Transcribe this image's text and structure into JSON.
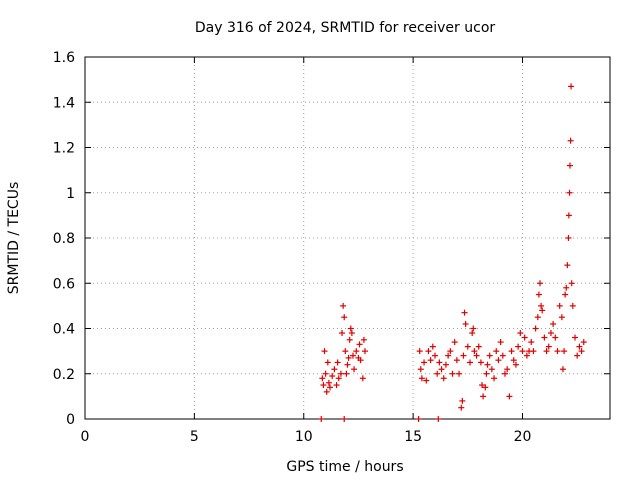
{
  "chart_data": {
    "type": "scatter",
    "title": "Day 316 of 2024, SRMTID for receiver ucor",
    "xlabel": "GPS time / hours",
    "ylabel": "SRMTID / TECUs",
    "xlim": [
      0,
      24
    ],
    "ylim": [
      0,
      1.6
    ],
    "grid": true,
    "marker": "+",
    "color": "#e00000",
    "x_ticks": [
      {
        "value": 0,
        "label": "0"
      },
      {
        "value": 5,
        "label": "5"
      },
      {
        "value": 10,
        "label": "10"
      },
      {
        "value": 15,
        "label": "15"
      },
      {
        "value": 20,
        "label": "20"
      }
    ],
    "y_ticks": [
      {
        "value": 0,
        "label": "0"
      },
      {
        "value": 0.2,
        "label": "0.2"
      },
      {
        "value": 0.4,
        "label": "0.4"
      },
      {
        "value": 0.6,
        "label": "0.6"
      },
      {
        "value": 0.8,
        "label": "0.8"
      },
      {
        "value": 1.0,
        "label": "1"
      },
      {
        "value": 1.2,
        "label": "1.2"
      },
      {
        "value": 1.4,
        "label": "1.4"
      },
      {
        "value": 1.6,
        "label": "1.6"
      }
    ],
    "series": [
      {
        "name": "SRMTID",
        "points": [
          [
            10.8,
            0.0
          ],
          [
            11.85,
            0.0
          ],
          [
            15.25,
            0.0
          ],
          [
            16.15,
            0.0
          ],
          [
            10.85,
            0.18
          ],
          [
            10.9,
            0.15
          ],
          [
            10.95,
            0.3
          ],
          [
            11.0,
            0.2
          ],
          [
            11.05,
            0.12
          ],
          [
            11.1,
            0.25
          ],
          [
            11.15,
            0.16
          ],
          [
            11.2,
            0.14
          ],
          [
            11.3,
            0.19
          ],
          [
            11.4,
            0.22
          ],
          [
            11.5,
            0.15
          ],
          [
            11.55,
            0.25
          ],
          [
            11.6,
            0.18
          ],
          [
            11.7,
            0.2
          ],
          [
            11.75,
            0.38
          ],
          [
            11.8,
            0.5
          ],
          [
            11.85,
            0.45
          ],
          [
            11.9,
            0.3
          ],
          [
            11.95,
            0.2
          ],
          [
            12.0,
            0.24
          ],
          [
            12.05,
            0.27
          ],
          [
            12.1,
            0.35
          ],
          [
            12.15,
            0.4
          ],
          [
            12.2,
            0.38
          ],
          [
            12.25,
            0.28
          ],
          [
            12.3,
            0.22
          ],
          [
            12.4,
            0.3
          ],
          [
            12.5,
            0.27
          ],
          [
            12.55,
            0.33
          ],
          [
            12.6,
            0.26
          ],
          [
            12.7,
            0.18
          ],
          [
            12.75,
            0.35
          ],
          [
            12.8,
            0.3
          ],
          [
            15.3,
            0.3
          ],
          [
            15.35,
            0.22
          ],
          [
            15.4,
            0.18
          ],
          [
            15.5,
            0.25
          ],
          [
            15.6,
            0.17
          ],
          [
            15.7,
            0.3
          ],
          [
            15.8,
            0.26
          ],
          [
            15.9,
            0.32
          ],
          [
            16.0,
            0.28
          ],
          [
            16.1,
            0.2
          ],
          [
            16.2,
            0.25
          ],
          [
            16.3,
            0.22
          ],
          [
            16.4,
            0.18
          ],
          [
            16.5,
            0.24
          ],
          [
            16.6,
            0.28
          ],
          [
            16.7,
            0.3
          ],
          [
            16.8,
            0.2
          ],
          [
            16.9,
            0.34
          ],
          [
            17.0,
            0.26
          ],
          [
            17.1,
            0.2
          ],
          [
            17.2,
            0.05
          ],
          [
            17.25,
            0.08
          ],
          [
            17.3,
            0.28
          ],
          [
            17.35,
            0.47
          ],
          [
            17.4,
            0.42
          ],
          [
            17.5,
            0.32
          ],
          [
            17.6,
            0.25
          ],
          [
            17.7,
            0.38
          ],
          [
            17.75,
            0.4
          ],
          [
            17.8,
            0.3
          ],
          [
            17.9,
            0.28
          ],
          [
            18.0,
            0.32
          ],
          [
            18.1,
            0.25
          ],
          [
            18.15,
            0.15
          ],
          [
            18.2,
            0.1
          ],
          [
            18.3,
            0.14
          ],
          [
            18.35,
            0.2
          ],
          [
            18.4,
            0.24
          ],
          [
            18.5,
            0.28
          ],
          [
            18.6,
            0.22
          ],
          [
            18.7,
            0.18
          ],
          [
            18.8,
            0.3
          ],
          [
            18.9,
            0.26
          ],
          [
            19.0,
            0.34
          ],
          [
            19.1,
            0.28
          ],
          [
            19.2,
            0.2
          ],
          [
            19.3,
            0.22
          ],
          [
            19.4,
            0.1
          ],
          [
            19.5,
            0.3
          ],
          [
            19.6,
            0.26
          ],
          [
            19.7,
            0.24
          ],
          [
            19.8,
            0.32
          ],
          [
            19.9,
            0.38
          ],
          [
            20.0,
            0.3
          ],
          [
            20.1,
            0.36
          ],
          [
            20.2,
            0.28
          ],
          [
            20.3,
            0.3
          ],
          [
            20.4,
            0.34
          ],
          [
            20.5,
            0.3
          ],
          [
            20.6,
            0.4
          ],
          [
            20.7,
            0.45
          ],
          [
            20.75,
            0.55
          ],
          [
            20.8,
            0.6
          ],
          [
            20.85,
            0.5
          ],
          [
            20.9,
            0.48
          ],
          [
            21.0,
            0.36
          ],
          [
            21.1,
            0.3
          ],
          [
            21.2,
            0.32
          ],
          [
            21.3,
            0.38
          ],
          [
            21.4,
            0.42
          ],
          [
            21.5,
            0.36
          ],
          [
            21.6,
            0.3
          ],
          [
            21.7,
            0.5
          ],
          [
            21.8,
            0.45
          ],
          [
            21.85,
            0.22
          ],
          [
            21.9,
            0.3
          ],
          [
            21.95,
            0.55
          ],
          [
            22.0,
            0.58
          ],
          [
            22.05,
            0.68
          ],
          [
            22.1,
            0.8
          ],
          [
            22.12,
            0.9
          ],
          [
            22.15,
            1.0
          ],
          [
            22.17,
            1.12
          ],
          [
            22.2,
            1.23
          ],
          [
            22.22,
            1.47
          ],
          [
            22.25,
            0.6
          ],
          [
            22.3,
            0.5
          ],
          [
            22.4,
            0.36
          ],
          [
            22.5,
            0.28
          ],
          [
            22.6,
            0.32
          ],
          [
            22.7,
            0.3
          ],
          [
            22.8,
            0.34
          ]
        ]
      }
    ]
  }
}
